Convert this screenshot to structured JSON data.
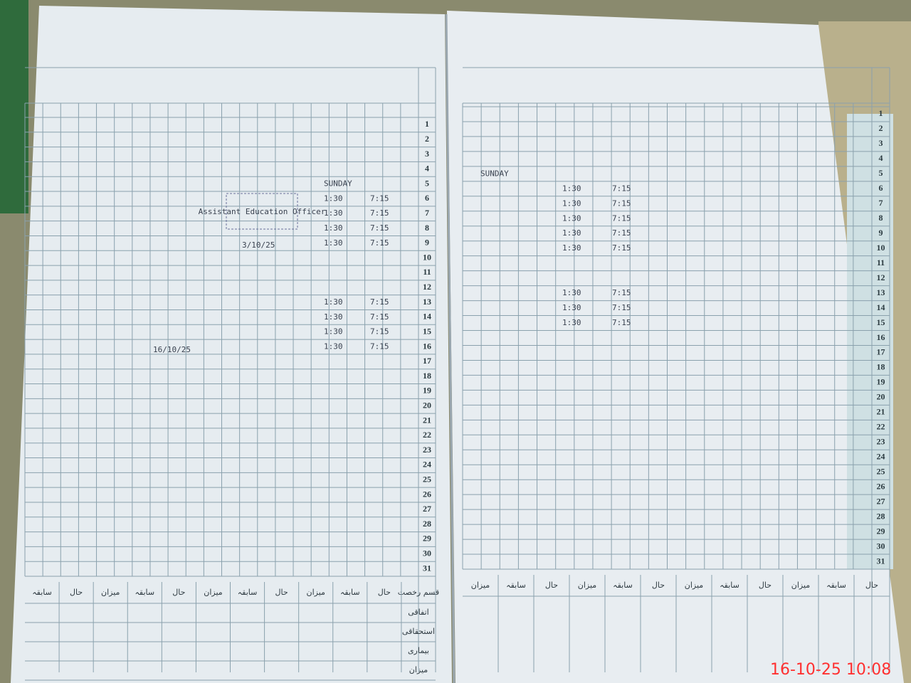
{
  "timestamp": "16-10-25  10:08",
  "left_page": {
    "days": [
      1,
      2,
      3,
      4,
      5,
      6,
      7,
      8,
      9,
      10,
      11,
      12,
      13,
      14,
      15,
      16,
      17,
      18,
      19,
      20,
      21,
      22,
      23,
      24,
      25,
      26,
      27,
      28,
      29,
      30,
      31
    ],
    "holiday": {
      "day": 5,
      "text": "SUNDAY"
    },
    "attendance": [
      {
        "day": 6,
        "in": "1:30",
        "out": "7:15"
      },
      {
        "day": 7,
        "in": "1:30",
        "out": "7:15"
      },
      {
        "day": 8,
        "in": "1:30",
        "out": "7:15"
      },
      {
        "day": 9,
        "in": "1:30",
        "out": "7:15"
      },
      {
        "day": 13,
        "in": "1:30",
        "out": "7:15"
      },
      {
        "day": 14,
        "in": "1:30",
        "out": "7:15"
      },
      {
        "day": 15,
        "in": "1:30",
        "out": "7:15"
      },
      {
        "day": 16,
        "in": "1:30",
        "out": "7:15"
      }
    ],
    "stamp": "Assistant Education Officer",
    "stamp_date": "3/10/25",
    "signature_date": "16/10/25",
    "footer_headers": [
      "قسم رخصت",
      "حال",
      "سابقہ",
      "میزان",
      "حال",
      "سابقہ",
      "میزان",
      "حال",
      "سابقہ",
      "میزان",
      "حال",
      "سابقہ"
    ],
    "leave_types": [
      "اتفاقی",
      "استحقاقی",
      "بیماری",
      "میزان"
    ]
  },
  "right_page": {
    "days": [
      1,
      2,
      3,
      4,
      5,
      6,
      7,
      8,
      9,
      10,
      11,
      12,
      13,
      14,
      15,
      16,
      17,
      18,
      19,
      20,
      21,
      22,
      23,
      24,
      25,
      26,
      27,
      28,
      29,
      30,
      31
    ],
    "holiday": {
      "day": 5,
      "text": "SUNDAY"
    },
    "attendance": [
      {
        "day": 6,
        "in": "1:30",
        "out": "7:15"
      },
      {
        "day": 7,
        "in": "1:30",
        "out": "7:15"
      },
      {
        "day": 8,
        "in": "1:30",
        "out": "7:15"
      },
      {
        "day": 9,
        "in": "1:30",
        "out": "7:15"
      },
      {
        "day": 10,
        "in": "1:30",
        "out": "7:15"
      },
      {
        "day": 13,
        "in": "1:30",
        "out": "7:15"
      },
      {
        "day": 14,
        "in": "1:30",
        "out": "7:15"
      },
      {
        "day": 15,
        "in": "1:30",
        "out": "7:15"
      }
    ],
    "footer_headers": [
      "حال",
      "سابقہ",
      "میزان",
      "حال",
      "سابقہ",
      "میزان",
      "حال",
      "سابقہ",
      "میزان",
      "حال",
      "سابقہ",
      "میزان"
    ]
  }
}
